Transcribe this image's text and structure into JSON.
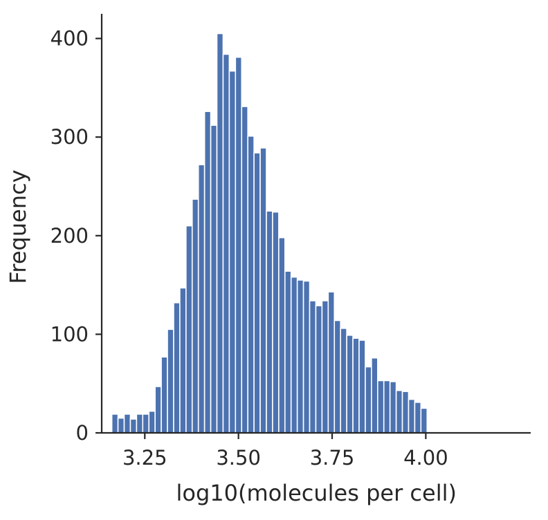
{
  "chart_data": {
    "type": "bar",
    "title": "",
    "xlabel": "log10(molecules per cell)",
    "ylabel": "Frequency",
    "xlim": [
      3.135,
      4.28
    ],
    "ylim": [
      0,
      425
    ],
    "x_ticks": [
      {
        "value": 3.25,
        "label": "3.25"
      },
      {
        "value": 3.5,
        "label": "3.50"
      },
      {
        "value": 3.75,
        "label": "3.75"
      },
      {
        "value": 4.0,
        "label": "4.00"
      }
    ],
    "y_ticks": [
      {
        "value": 0,
        "label": "0"
      },
      {
        "value": 100,
        "label": "100"
      },
      {
        "value": 200,
        "label": "200"
      },
      {
        "value": 300,
        "label": "300"
      },
      {
        "value": 400,
        "label": "400"
      }
    ],
    "bin_start": 3.162,
    "bin_width": 0.0165,
    "values": [
      19,
      15,
      19,
      14,
      19,
      19,
      22,
      47,
      77,
      105,
      132,
      147,
      210,
      237,
      272,
      326,
      312,
      405,
      384,
      367,
      381,
      331,
      301,
      284,
      289,
      225,
      224,
      198,
      164,
      158,
      155,
      154,
      134,
      129,
      134,
      143,
      114,
      106,
      99,
      96,
      94,
      67,
      76,
      53,
      53,
      52,
      43,
      42,
      34,
      31,
      25
    ],
    "bar_color": "#4c72b0",
    "grid": false,
    "legend": "none"
  }
}
